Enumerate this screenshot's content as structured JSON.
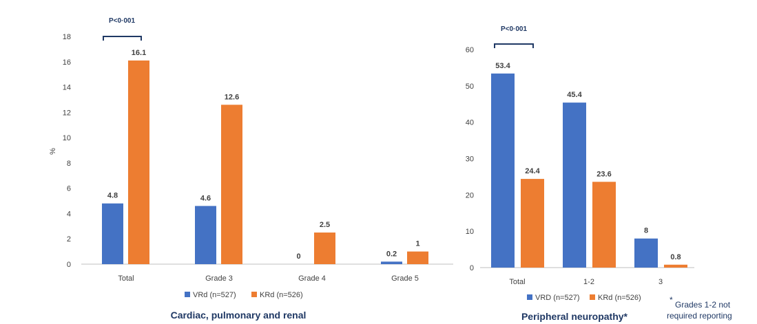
{
  "colors": {
    "series1": "#4472c4",
    "series2": "#ed7d31",
    "axis": "#bfbfbf",
    "bracket": "#1f3864"
  },
  "chart_data": [
    {
      "type": "bar",
      "title": "Cardiac, pulmonary and renal",
      "ylabel": "%",
      "ylim": [
        0,
        18
      ],
      "yticks": [
        "0",
        "2",
        "4",
        "6",
        "8",
        "10",
        "12",
        "14",
        "16",
        "18"
      ],
      "categories": [
        "Total",
        "Grade 3",
        "Grade 4",
        "Grade 5"
      ],
      "series": [
        {
          "name": "VRd (n=527)",
          "values": [
            4.8,
            4.6,
            0,
            0.2
          ],
          "labels": [
            "4.8",
            "4.6",
            "0",
            "0.2"
          ]
        },
        {
          "name": "KRd (n=526)",
          "values": [
            16.1,
            12.6,
            2.5,
            1
          ],
          "labels": [
            "16.1",
            "12.6",
            "2.5",
            "1"
          ]
        }
      ],
      "annotation": {
        "text": "P<0·001",
        "category_index": 0
      }
    },
    {
      "type": "bar",
      "title": "Peripheral neuropathy*",
      "ylabel": "",
      "ylim": [
        0,
        60
      ],
      "yticks": [
        "0",
        "10",
        "20",
        "30",
        "40",
        "50",
        "60"
      ],
      "categories": [
        "Total",
        "1-2",
        "3"
      ],
      "series": [
        {
          "name": "VRD (n=527)",
          "values": [
            53.4,
            45.4,
            8
          ],
          "labels": [
            "53.4",
            "45.4",
            "8"
          ]
        },
        {
          "name": "KRd (n=526)",
          "values": [
            24.4,
            23.6,
            0.8
          ],
          "labels": [
            "24.4",
            "23.6",
            "0.8"
          ]
        }
      ],
      "annotation": {
        "text": "P<0·001",
        "category_index": 0
      },
      "footnote": {
        "marker": "*",
        "line1": "Grades 1-2 not",
        "line2": "required reporting"
      }
    }
  ]
}
